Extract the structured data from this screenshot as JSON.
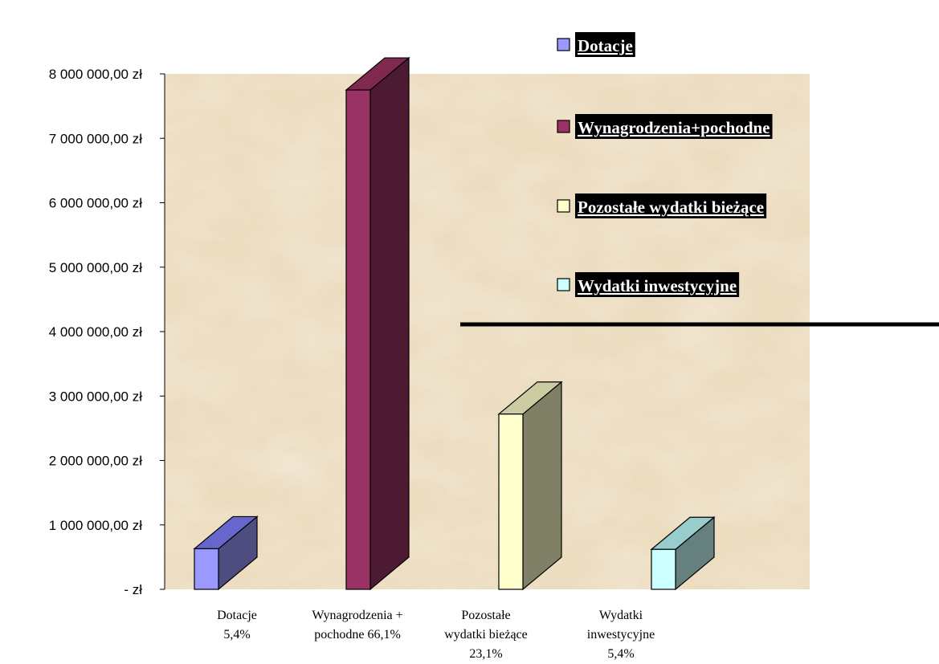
{
  "chart_data": {
    "type": "bar",
    "categories": [
      [
        "Dotacje",
        "5,4%"
      ],
      [
        "Wynagrodzenia +",
        "pochodne  66,1%"
      ],
      [
        "Pozostałe",
        "wydatki bieżące",
        "23,1%"
      ],
      [
        "Wydatki",
        "inwestycyjne",
        "5,4%"
      ]
    ],
    "values": [
      630000,
      7750000,
      2720000,
      620000
    ],
    "ylim": [
      0,
      8000000
    ],
    "yticks": [
      0,
      1000000,
      2000000,
      3000000,
      4000000,
      5000000,
      6000000,
      7000000,
      8000000
    ],
    "ytick_labels": [
      "-      zł",
      "1 000 000,00 zł",
      "2 000 000,00 zł",
      "3 000 000,00 zł",
      "4 000 000,00 zł",
      "5 000 000,00 zł",
      "6 000 000,00 zł",
      "7 000 000,00 zł",
      "8 000 000,00 zł"
    ],
    "legend": {
      "placement": "top-right",
      "entries": [
        "Dotacje ",
        "Wynagrodzenia+pochodne ",
        "Pozostałe wydatki bieżące ",
        "Wydatki inwestycyjne"
      ]
    },
    "colors": {
      "front": [
        "#9999ff",
        "#993366",
        "#ffffcc",
        "#ccffff"
      ],
      "side": [
        "#4d4d80",
        "#4d1a33",
        "#808066",
        "#668080"
      ],
      "top": [
        "#6666cc",
        "#80294f",
        "#cccca3",
        "#99cccc"
      ]
    },
    "background": "parchment",
    "grid": false
  }
}
